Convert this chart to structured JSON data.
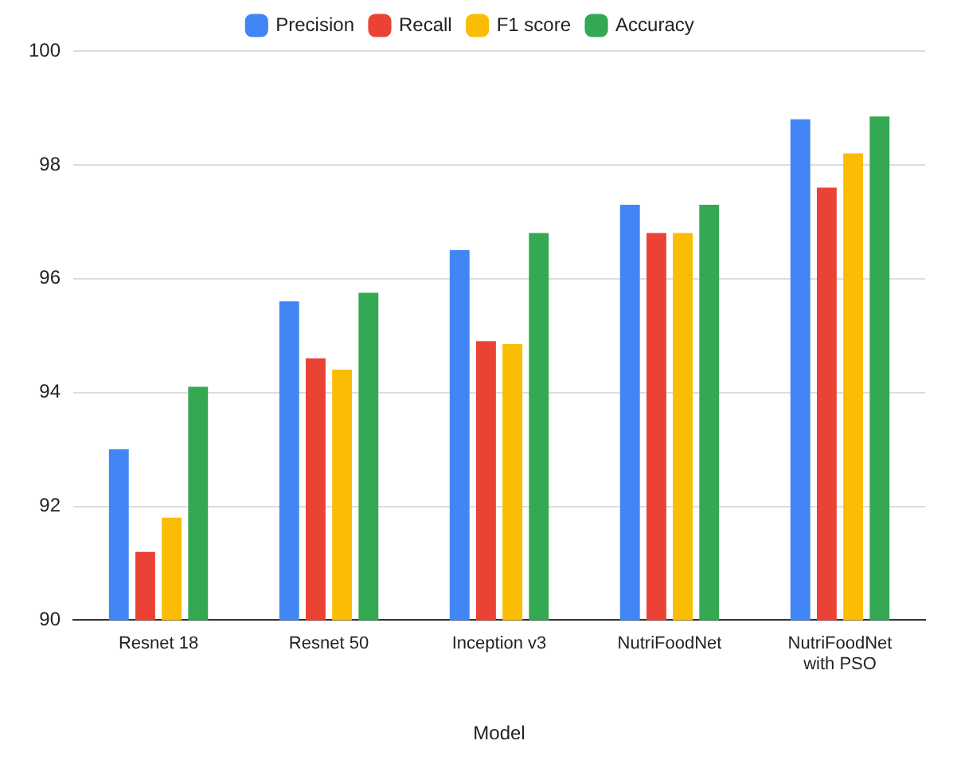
{
  "chart_data": {
    "type": "bar",
    "xlabel": "Model",
    "categories": [
      "Resnet 18",
      "Resnet 50",
      "Inception v3",
      "NutriFoodNet",
      "NutriFoodNet with PSO"
    ],
    "series": [
      {
        "name": "Precision",
        "color": "#4285f4",
        "values": [
          93.0,
          95.6,
          96.5,
          97.3,
          98.8
        ]
      },
      {
        "name": "Recall",
        "color": "#ea4335",
        "values": [
          91.2,
          94.6,
          94.9,
          96.8,
          97.6
        ]
      },
      {
        "name": "F1 score",
        "color": "#fbbc04",
        "values": [
          91.8,
          94.4,
          94.85,
          96.8,
          98.2
        ]
      },
      {
        "name": "Accuracy",
        "color": "#34a853",
        "values": [
          94.1,
          95.75,
          96.8,
          97.3,
          98.85
        ]
      }
    ],
    "ylim": [
      90,
      100
    ],
    "yticks": [
      90,
      92,
      94,
      96,
      98,
      100
    ],
    "grid": "y",
    "legend": "top"
  }
}
